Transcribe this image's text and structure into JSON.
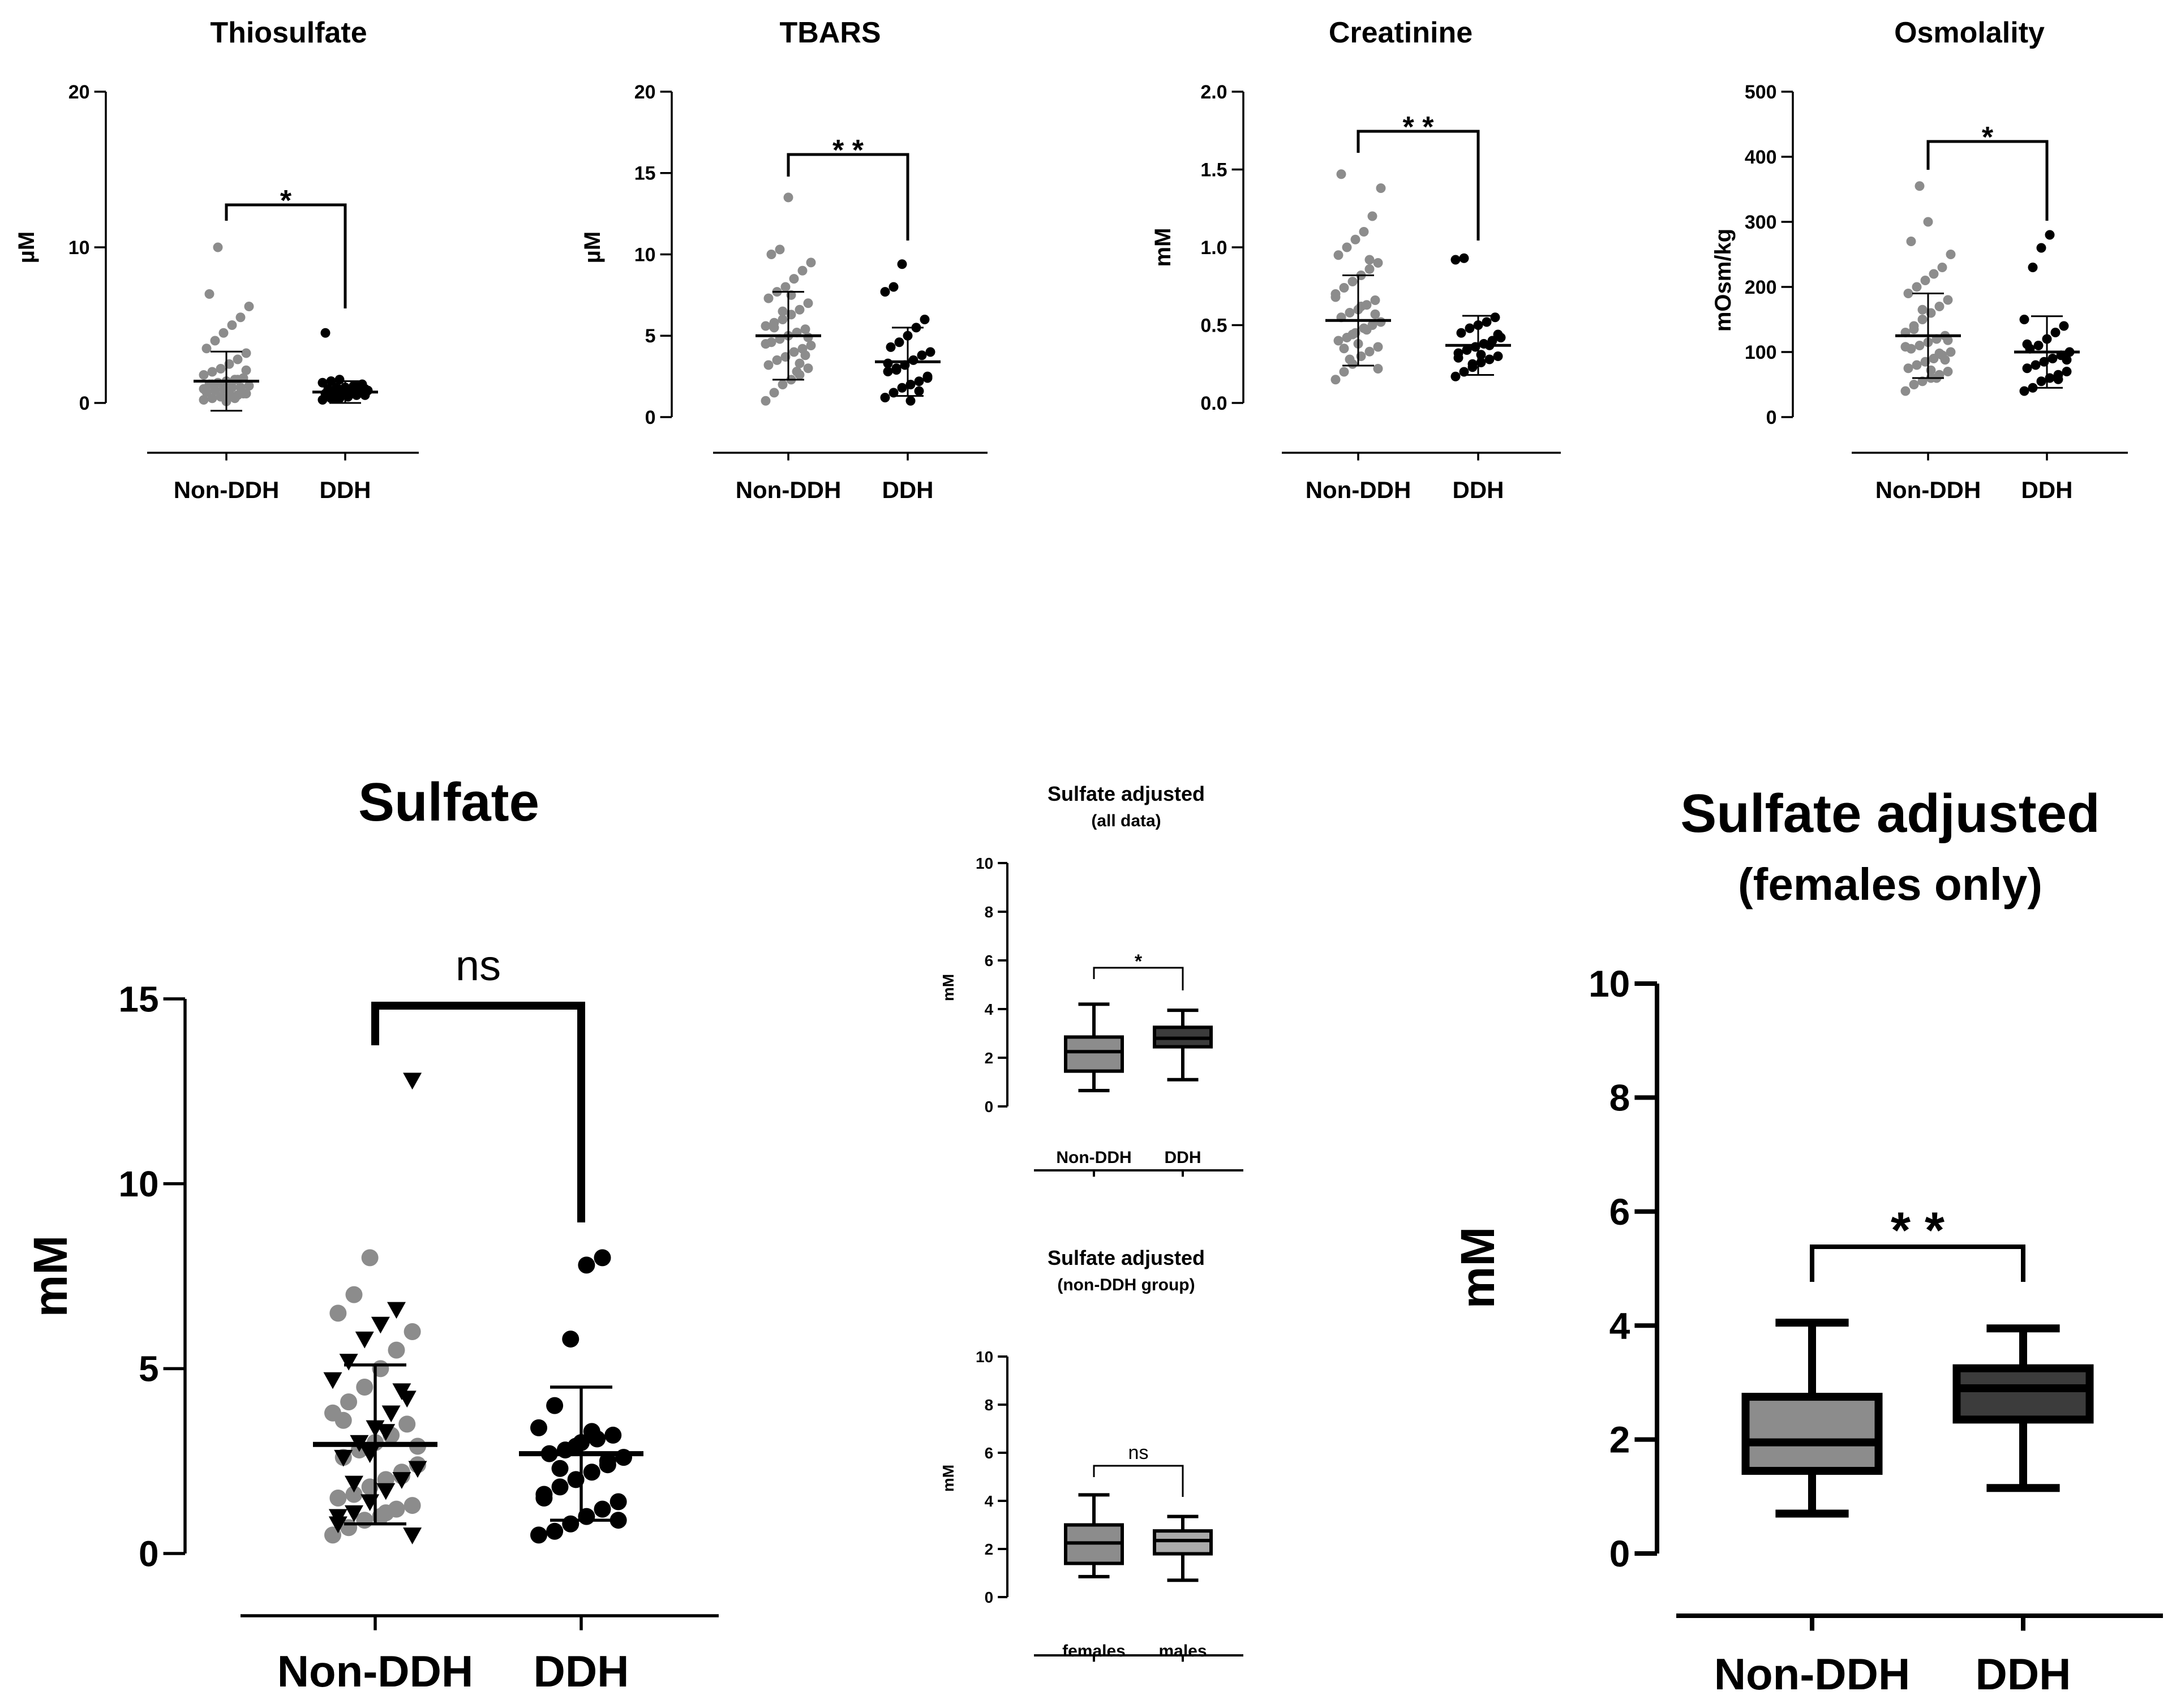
{
  "chart_data": [
    {
      "type": "scatter",
      "title": "Thiosulfate",
      "ylabel": "µM",
      "ylim": [
        0,
        20
      ],
      "ticks": [
        "0",
        "10",
        "20"
      ],
      "categories": [
        "Non-DDH",
        "DDH"
      ],
      "significance": "*",
      "series": [
        {
          "name": "Non-DDH",
          "mean": 1.4,
          "sd": 1.9,
          "values": [
            0.2,
            0.3,
            0.4,
            0.5,
            0.5,
            0.6,
            0.7,
            0.8,
            0.9,
            1.0,
            1.0,
            1.1,
            1.2,
            1.3,
            1.4,
            1.5,
            1.6,
            1.8,
            2.0,
            2.2,
            2.5,
            2.8,
            3.2,
            3.5,
            4.0,
            4.5,
            5.0,
            5.5,
            6.2,
            7.0,
            10.0,
            0.1,
            0.3,
            0.6,
            0.9,
            1.2,
            0.4,
            0.7,
            1.5,
            2.1
          ]
        },
        {
          "name": "DDH",
          "mean": 0.7,
          "sd": 0.7,
          "values": [
            0.2,
            0.3,
            0.3,
            0.4,
            0.5,
            0.5,
            0.6,
            0.6,
            0.7,
            0.7,
            0.8,
            0.8,
            0.9,
            1.0,
            1.0,
            1.1,
            1.2,
            1.3,
            1.4,
            1.5,
            0.4,
            0.6,
            0.9,
            4.5,
            0.3,
            0.5,
            0.8,
            1.1
          ]
        }
      ]
    },
    {
      "type": "scatter",
      "title": "TBARS",
      "ylabel": "µM",
      "ylim": [
        0,
        20
      ],
      "ticks": [
        "0",
        "5",
        "10",
        "15",
        "20"
      ],
      "categories": [
        "Non-DDH",
        "DDH"
      ],
      "significance": "* *",
      "series": [
        {
          "name": "Non-DDH",
          "mean": 5.0,
          "sd": 2.7,
          "values": [
            1.0,
            1.5,
            2.0,
            2.3,
            2.6,
            3.0,
            3.2,
            3.5,
            3.7,
            4.0,
            4.2,
            4.4,
            4.6,
            4.8,
            5.0,
            5.2,
            5.4,
            5.6,
            5.8,
            6.0,
            6.3,
            6.6,
            7.0,
            7.3,
            7.7,
            8.0,
            8.5,
            9.0,
            9.5,
            10.0,
            10.3,
            13.5,
            2.8,
            3.8,
            4.5,
            5.5,
            6.5,
            7.5,
            3.3,
            4.9
          ]
        },
        {
          "name": "DDH",
          "mean": 3.4,
          "sd": 2.1,
          "values": [
            1.2,
            1.5,
            1.8,
            2.0,
            2.2,
            2.5,
            2.8,
            3.0,
            3.2,
            3.5,
            3.8,
            4.0,
            4.3,
            4.6,
            5.0,
            5.5,
            6.0,
            7.7,
            8.0,
            9.4,
            1.0,
            1.6,
            2.4,
            3.3,
            2.9
          ]
        }
      ]
    },
    {
      "type": "scatter",
      "title": "Creatinine",
      "ylabel": "mM",
      "ylim": [
        0,
        2.0
      ],
      "ticks": [
        "0.0",
        "0.5",
        "1.0",
        "1.5",
        "2.0"
      ],
      "categories": [
        "Non-DDH",
        "DDH"
      ],
      "significance": "* *",
      "series": [
        {
          "name": "Non-DDH",
          "mean": 0.53,
          "sd": 0.29,
          "values": [
            0.15,
            0.2,
            0.25,
            0.3,
            0.33,
            0.36,
            0.4,
            0.42,
            0.45,
            0.48,
            0.5,
            0.52,
            0.55,
            0.58,
            0.6,
            0.63,
            0.66,
            0.7,
            0.74,
            0.78,
            0.82,
            0.86,
            0.9,
            0.95,
            1.0,
            1.05,
            1.1,
            1.2,
            1.38,
            1.47,
            0.28,
            0.38,
            0.47,
            0.57,
            0.68,
            0.35,
            0.44,
            0.62,
            0.92,
            0.22
          ]
        },
        {
          "name": "DDH",
          "mean": 0.37,
          "sd": 0.19,
          "values": [
            0.17,
            0.2,
            0.23,
            0.26,
            0.28,
            0.3,
            0.32,
            0.34,
            0.36,
            0.38,
            0.4,
            0.42,
            0.45,
            0.48,
            0.5,
            0.52,
            0.55,
            0.92,
            0.93,
            0.25,
            0.31,
            0.37,
            0.44,
            0.29
          ]
        }
      ]
    },
    {
      "type": "scatter",
      "title": "Osmolality",
      "ylabel": "mOsm/kg",
      "ylim": [
        0,
        500
      ],
      "ticks": [
        "0",
        "100",
        "200",
        "300",
        "400",
        "500"
      ],
      "categories": [
        "Non-DDH",
        "DDH"
      ],
      "significance": "*",
      "series": [
        {
          "name": "Non-DDH",
          "mean": 125,
          "sd": 65,
          "values": [
            40,
            50,
            55,
            60,
            65,
            70,
            75,
            80,
            85,
            90,
            95,
            100,
            105,
            110,
            115,
            120,
            125,
            130,
            140,
            150,
            160,
            170,
            180,
            190,
            200,
            210,
            220,
            230,
            250,
            270,
            355,
            300,
            60,
            88,
            108,
            135,
            165,
            72,
            98,
            118
          ]
        },
        {
          "name": "DDH",
          "mean": 100,
          "sd": 55,
          "values": [
            40,
            45,
            55,
            60,
            65,
            70,
            75,
            80,
            85,
            90,
            95,
            100,
            105,
            110,
            120,
            130,
            140,
            150,
            230,
            260,
            280,
            58,
            88,
            112
          ]
        }
      ]
    },
    {
      "type": "scatter",
      "title": "Sulfate",
      "ylabel": "mM",
      "ylim": [
        0,
        15
      ],
      "ticks": [
        "0",
        "5",
        "10",
        "15"
      ],
      "categories": [
        "Non-DDH",
        "DDH"
      ],
      "significance": "ns",
      "series": [
        {
          "name": "Non-DDH",
          "mean": 2.95,
          "sd": 2.15,
          "circles": [
            0.5,
            0.7,
            0.9,
            1.0,
            1.2,
            1.3,
            1.5,
            1.6,
            1.8,
            2.0,
            2.2,
            2.4,
            2.6,
            2.8,
            3.0,
            3.2,
            3.5,
            3.8,
            4.1,
            4.5,
            5.0,
            5.5,
            6.0,
            6.5,
            7.0,
            8.0,
            1.1,
            2.1,
            2.9,
            3.6
          ],
          "triangles": [
            0.5,
            0.8,
            1.1,
            1.4,
            1.7,
            2.0,
            2.3,
            2.6,
            3.0,
            3.4,
            3.8,
            4.2,
            4.7,
            5.2,
            5.8,
            6.2,
            6.6,
            12.8,
            1.0,
            1.9,
            2.7,
            3.3,
            4.4
          ]
        },
        {
          "name": "DDH",
          "mean": 2.7,
          "sd": 1.8,
          "values": [
            0.5,
            0.6,
            0.8,
            1.0,
            1.2,
            1.4,
            1.6,
            1.8,
            2.0,
            2.2,
            2.4,
            2.6,
            2.7,
            2.8,
            3.0,
            3.1,
            3.2,
            3.4,
            4.0,
            5.8,
            7.8,
            8.0,
            0.9,
            1.5,
            2.3,
            2.9,
            3.3,
            2.5
          ]
        }
      ]
    },
    {
      "type": "box",
      "title": "Sulfate adjusted",
      "subtitle": "(all data)",
      "ylabel": "mM",
      "ylim": [
        0,
        10
      ],
      "ticks": [
        "0",
        "2",
        "4",
        "6",
        "8",
        "10"
      ],
      "categories": [
        "Non-DDH",
        "DDH"
      ],
      "significance": "*",
      "boxes": [
        {
          "name": "Non-DDH",
          "min": 0.65,
          "q1": 1.45,
          "median": 2.25,
          "q3": 2.85,
          "max": 4.2,
          "color": "#8c8c8c"
        },
        {
          "name": "DDH",
          "min": 1.1,
          "q1": 2.45,
          "median": 2.8,
          "q3": 3.25,
          "max": 3.95,
          "color": "#3c3c3c"
        }
      ]
    },
    {
      "type": "box",
      "title": "Sulfate adjusted",
      "subtitle": "(non-DDH group)",
      "ylabel": "mM",
      "ylim": [
        0,
        10
      ],
      "ticks": [
        "0",
        "2",
        "4",
        "6",
        "8",
        "10"
      ],
      "categories": [
        "females",
        "males"
      ],
      "significance": "ns",
      "boxes": [
        {
          "name": "females",
          "min": 0.85,
          "q1": 1.4,
          "median": 2.25,
          "q3": 3.0,
          "max": 4.25,
          "color": "#8c8c8c"
        },
        {
          "name": "males",
          "min": 0.7,
          "q1": 1.8,
          "median": 2.35,
          "q3": 2.75,
          "max": 3.35,
          "color": "#aaaaaa"
        }
      ]
    },
    {
      "type": "box",
      "title": "Sulfate adjusted",
      "subtitle": "(females only)",
      "ylabel": "mM",
      "ylim": [
        0,
        10
      ],
      "ticks": [
        "0",
        "2",
        "4",
        "6",
        "8",
        "10"
      ],
      "categories": [
        "Non-DDH",
        "DDH"
      ],
      "significance": "* *",
      "boxes": [
        {
          "name": "Non-DDH",
          "min": 0.7,
          "q1": 1.45,
          "median": 1.95,
          "q3": 2.75,
          "max": 4.05,
          "color": "#8c8c8c"
        },
        {
          "name": "DDH",
          "min": 1.15,
          "q1": 2.35,
          "median": 2.9,
          "q3": 3.25,
          "max": 3.95,
          "color": "#3c3c3c"
        }
      ]
    }
  ]
}
